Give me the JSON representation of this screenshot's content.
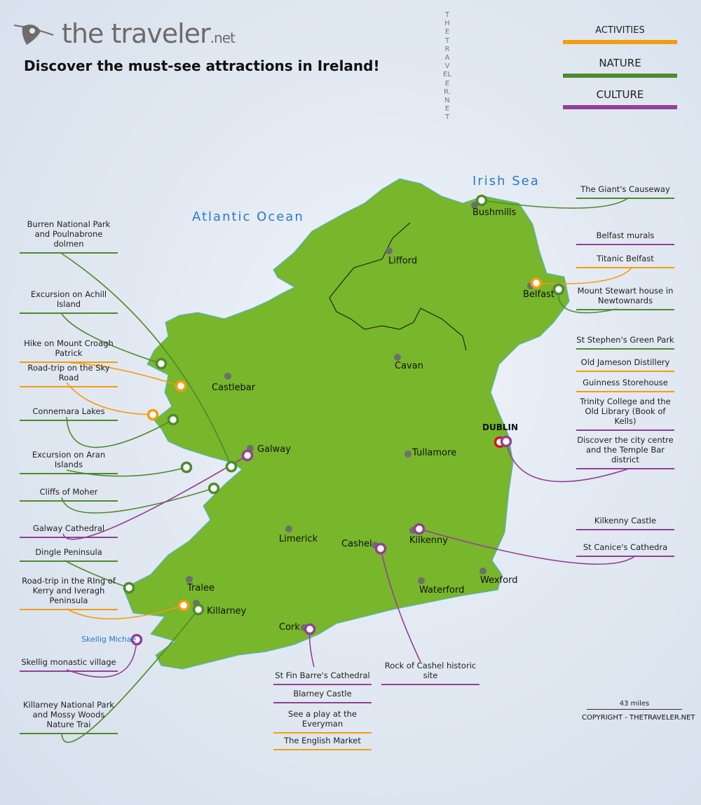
{
  "header": {
    "logo_text": "the traveler",
    "logo_suffix": ".net",
    "title": "Discover the must-see attractions in Ireland!",
    "watermark_vertical": "THETRAVELER.NET"
  },
  "legend": [
    {
      "label": "ACTIVITIES",
      "color": "#f59c0f"
    },
    {
      "label": "NATURE",
      "color": "#4e8a2e"
    },
    {
      "label": "CULTURE",
      "color": "#943f97"
    }
  ],
  "colors": {
    "land": "#78b62b",
    "activities": "#f59c0f",
    "nature": "#4e8a2e",
    "culture": "#943f97",
    "capital": "#d8141b",
    "town_dot": "#6e6e6e",
    "water_label": "#2d78c4"
  },
  "water": {
    "atlantic": "Atlantic Ocean",
    "irish_sea": "Irish Sea",
    "skellig": "Skellig Michae"
  },
  "towns": {
    "lifford": "Lifford",
    "bushmills": "Bushmills",
    "belfast": "Belfast",
    "cavan": "Cavan",
    "castlebar": "Castlebar",
    "galway": "Galway",
    "dublin": "DUBLIN",
    "tullamore": "Tullamore",
    "limerick": "Limerick",
    "cashel": "Cashel",
    "kilkenny": "Kilkenny",
    "tralee": "Tralee",
    "killarney": "Killarney",
    "cork": "Cork",
    "waterford": "Waterford",
    "wexford": "Wexford"
  },
  "attractions": {
    "burren": {
      "label": "Burren National Park and Poulnabrone dolmen",
      "category": "nature"
    },
    "achill": {
      "label": "Excursion on Achill Island",
      "category": "nature"
    },
    "croagh": {
      "label": "Hike on Mount Croagh Patrick",
      "category": "activities"
    },
    "skyroad": {
      "label": "Road-trip on the Sky Road",
      "category": "activities"
    },
    "connemara": {
      "label": "Connemara Lakes",
      "category": "nature"
    },
    "aran": {
      "label": "Excursion on Aran Islands",
      "category": "nature"
    },
    "moher": {
      "label": "Cliffs of Moher",
      "category": "nature"
    },
    "galway_cathedral": {
      "label": "Galway Cathedral",
      "category": "culture"
    },
    "dingle": {
      "label": "Dingle Peninsula",
      "category": "nature"
    },
    "ring_kerry": {
      "label": "Road-trip in the RIng of Kerry and Iveragh Peninsula",
      "category": "activities"
    },
    "skellig": {
      "label": "Skellig monastic village",
      "category": "culture"
    },
    "killarney_np": {
      "label": "Killarney National Park and Mossy Woods Nature Trai",
      "category": "nature"
    },
    "giants": {
      "label": "The Giant's Causeway",
      "category": "nature"
    },
    "belfast_murals": {
      "label": "Belfast murals",
      "category": "culture"
    },
    "titanic": {
      "label": "Titanic Belfast",
      "category": "activities"
    },
    "mount_stewart": {
      "label": "Mount Stewart house in Newtownards",
      "category": "nature"
    },
    "stephens": {
      "label": "St Stephen's Green Park",
      "category": "nature"
    },
    "jameson": {
      "label": "Old Jameson Distillery",
      "category": "activities"
    },
    "guinness": {
      "label": "Guinness Storehouse",
      "category": "activities"
    },
    "trinity": {
      "label": "Trinity College and the Old Library (Book of Kells)",
      "category": "culture"
    },
    "temple_bar": {
      "label": "Discover the city centre and the Temple Bar district",
      "category": "culture"
    },
    "kilkenny_castle": {
      "label": "Kilkenny Castle",
      "category": "culture"
    },
    "st_canice": {
      "label": "St Canice's Cathedra",
      "category": "culture"
    },
    "fin_barre": {
      "label": "St Fin Barre's Cathedral",
      "category": "culture"
    },
    "blarney": {
      "label": "Blarney Castle",
      "category": "culture"
    },
    "everyman": {
      "label": "See a play at the Everyman",
      "category": "activities"
    },
    "english_market": {
      "label": "The English Market",
      "category": "activities"
    },
    "cashel_rock": {
      "label": "Rock of Cashel historic site",
      "category": "culture"
    }
  },
  "footer": {
    "scale": "43 miles",
    "copyright": "COPYRIGHT - THETRAVELER.NET"
  }
}
